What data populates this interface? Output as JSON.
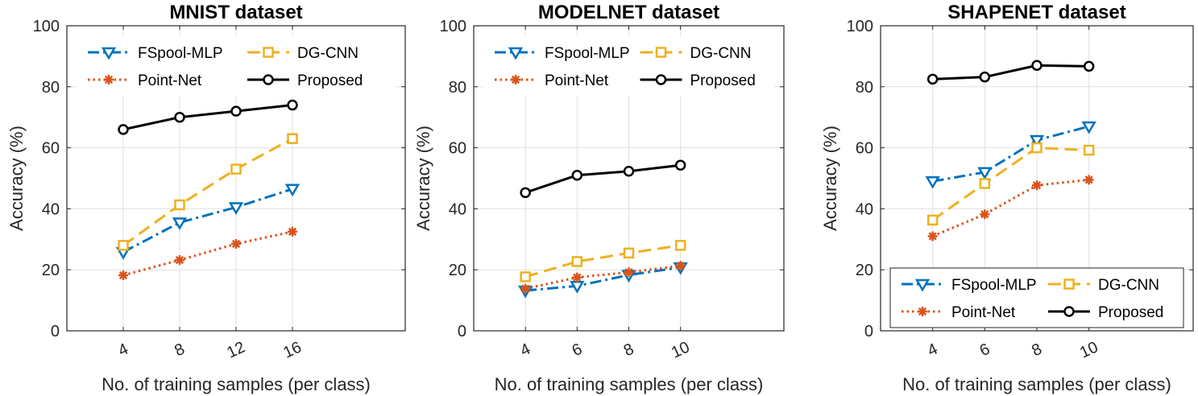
{
  "chart_data": [
    {
      "type": "line",
      "title": "MNIST dataset",
      "xlabel": "No. of training samples (per class)",
      "ylabel": "Accuracy (%)",
      "categories": [
        "4",
        "8",
        "12",
        "16"
      ],
      "y_ticks": [
        "0",
        "20",
        "40",
        "60",
        "80",
        "100"
      ],
      "ylim": [
        0,
        100
      ],
      "grid": true,
      "legend_position": "top",
      "series": [
        {
          "name": "FSpool-MLP",
          "values": [
            25.8,
            35.5,
            40.5,
            46.5
          ]
        },
        {
          "name": "Point-Net",
          "values": [
            18.2,
            23.2,
            28.5,
            32.5
          ]
        },
        {
          "name": "DG-CNN",
          "values": [
            28.0,
            41.3,
            53.0,
            63.0
          ]
        },
        {
          "name": "Proposed",
          "values": [
            66.0,
            70.0,
            72.0,
            74.0
          ]
        }
      ]
    },
    {
      "type": "line",
      "title": "MODELNET dataset",
      "xlabel": "No. of training samples (per class)",
      "ylabel": "Accuracy (%)",
      "categories": [
        "4",
        "6",
        "8",
        "10"
      ],
      "y_ticks": [
        "0",
        "20",
        "40",
        "60",
        "80",
        "100"
      ],
      "ylim": [
        0,
        100
      ],
      "grid": true,
      "legend_position": "top",
      "series": [
        {
          "name": "FSpool-MLP",
          "values": [
            13.2,
            14.7,
            18.3,
            20.8
          ]
        },
        {
          "name": "Point-Net",
          "values": [
            13.8,
            17.5,
            19.2,
            21.3
          ]
        },
        {
          "name": "DG-CNN",
          "values": [
            17.7,
            22.7,
            25.5,
            28.0
          ]
        },
        {
          "name": "Proposed",
          "values": [
            45.3,
            51.0,
            52.3,
            54.3
          ]
        }
      ]
    },
    {
      "type": "line",
      "title": "SHAPENET dataset",
      "xlabel": "No. of training samples (per class)",
      "ylabel": "Accuracy (%)",
      "categories": [
        "4",
        "6",
        "8",
        "10"
      ],
      "y_ticks": [
        "0",
        "20",
        "40",
        "60",
        "80",
        "100"
      ],
      "ylim": [
        0,
        100
      ],
      "grid": true,
      "legend_position": "bottom",
      "series": [
        {
          "name": "FSpool-MLP",
          "values": [
            49.0,
            52.0,
            62.5,
            67.0
          ]
        },
        {
          "name": "Point-Net",
          "values": [
            31.0,
            38.2,
            47.7,
            49.5
          ]
        },
        {
          "name": "DG-CNN",
          "values": [
            36.3,
            48.3,
            60.0,
            59.2
          ]
        },
        {
          "name": "Proposed",
          "values": [
            82.5,
            83.2,
            87.0,
            86.7
          ]
        }
      ]
    }
  ],
  "series_styles": {
    "FSpool-MLP": {
      "color": "#0072BD",
      "marker": "triangle-down-icon"
    },
    "Point-Net": {
      "color": "#D95319",
      "marker": "asterisk-icon"
    },
    "DG-CNN": {
      "color": "#EDB120",
      "marker": "square-icon"
    },
    "Proposed": {
      "color": "#000000",
      "marker": "circle-icon"
    }
  }
}
